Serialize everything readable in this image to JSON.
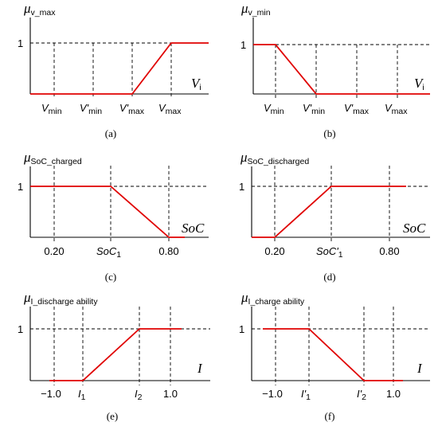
{
  "panels": [
    {
      "id": "a",
      "mu_symbol": "μ",
      "mu_subscript": "v_max",
      "y_tick": "1",
      "x_symbol": "V",
      "x_subscript": "i",
      "ticks": [
        {
          "main": "V",
          "sub": "min"
        },
        {
          "main": "V'",
          "sub": "min"
        },
        {
          "main": "V'",
          "sub": "max"
        },
        {
          "main": "V",
          "sub": "max"
        }
      ],
      "caption": "(a)"
    },
    {
      "id": "b",
      "mu_symbol": "μ",
      "mu_subscript": "v_min",
      "y_tick": "1",
      "x_symbol": "V",
      "x_subscript": "i",
      "ticks": [
        {
          "main": "V",
          "sub": "min"
        },
        {
          "main": "V'",
          "sub": "min"
        },
        {
          "main": "V'",
          "sub": "max"
        },
        {
          "main": "V",
          "sub": "max"
        }
      ],
      "caption": "(b)"
    },
    {
      "id": "c",
      "mu_symbol": "μ",
      "mu_subscript": "SoC_charged",
      "y_tick": "1",
      "x_symbol": "SoC",
      "x_subscript": "",
      "ticks": [
        {
          "main": "0.20",
          "sub": ""
        },
        {
          "main": "SoC",
          "sub": "1"
        },
        {
          "main": "0.80",
          "sub": ""
        }
      ],
      "caption": "(c)"
    },
    {
      "id": "d",
      "mu_symbol": "μ",
      "mu_subscript": "SoC_discharged",
      "y_tick": "1",
      "x_symbol": "SoC",
      "x_subscript": "",
      "ticks": [
        {
          "main": "0.20",
          "sub": ""
        },
        {
          "main": "SoC'",
          "sub": "1"
        },
        {
          "main": "0.80",
          "sub": ""
        }
      ],
      "caption": "(d)"
    },
    {
      "id": "e",
      "mu_symbol": "μ",
      "mu_subscript": "I_discharge ability",
      "y_tick": "1",
      "x_symbol": "I",
      "x_subscript": "",
      "ticks": [
        {
          "main": "−1.0",
          "sub": ""
        },
        {
          "main": "I",
          "sub": "1"
        },
        {
          "main": "I",
          "sub": "2"
        },
        {
          "main": "1.0",
          "sub": ""
        }
      ],
      "caption": "(e)"
    },
    {
      "id": "f",
      "mu_symbol": "μ",
      "mu_subscript": "I_charge ability",
      "y_tick": "1",
      "x_symbol": "I",
      "x_subscript": "",
      "ticks": [
        {
          "main": "−1.0",
          "sub": ""
        },
        {
          "main": "I'",
          "sub": "1"
        },
        {
          "main": "I'",
          "sub": "2"
        },
        {
          "main": "1.0",
          "sub": ""
        }
      ],
      "caption": "(f)"
    }
  ]
}
